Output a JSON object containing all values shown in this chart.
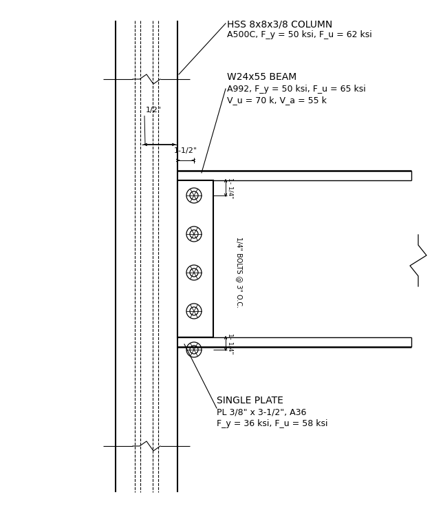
{
  "bg_color": "#ffffff",
  "line_color": "#000000",
  "figsize": [
    6.44,
    7.38
  ],
  "dpi": 100,
  "col_title": "HSS 8x8x3/8 COLUMN",
  "col_sub": "A500C, F_y = 50 ksi, F_u = 62 ksi",
  "beam_title": "W24x55 BEAM",
  "beam_sub1": "A992, F_y = 50 ksi, F_u = 65 ksi",
  "beam_sub2": "V_u = 70 k, V_a = 55 k",
  "plate_title": "SINGLE PLATE",
  "plate_sub1": "PL 3/8\" x 3-1/2\", A36",
  "plate_sub2": "F_y = 36 ksi, F_u = 58 ksi",
  "label_half": "1/2\"",
  "label_1half": "1-1/2\"",
  "label_1qtr_top": "1- 1/4\"",
  "label_bolts": "1/4\" BOLTS @ 3\" O.C.",
  "label_1qtr_bot": "1- 1/4\""
}
